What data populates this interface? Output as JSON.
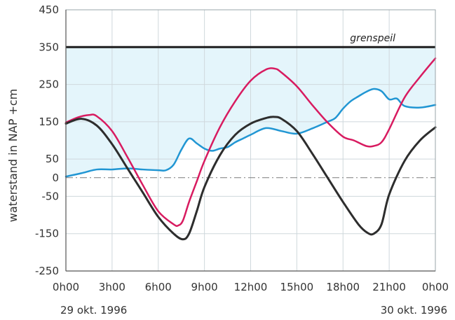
{
  "chart_data": {
    "type": "line",
    "xlabel": "",
    "ylabel": "waterstand in NAP  +cm",
    "x_tick_labels": [
      "0h00",
      "3h00",
      "6h00",
      "9h00",
      "12h00",
      "15h00",
      "18h00",
      "21h00",
      "0h00"
    ],
    "y_tick_labels": [
      "450",
      "350",
      "250",
      "150",
      "50",
      "0",
      "-50",
      "-150",
      "-250"
    ],
    "y_ticks": [
      450,
      350,
      250,
      150,
      50,
      0,
      -50,
      -150,
      -250
    ],
    "xlim": [
      0,
      24
    ],
    "ylim": [
      -250,
      450
    ],
    "date_start": "29 okt. 1996",
    "date_end": "30 okt. 1996",
    "grid": true,
    "annotation": {
      "text": "grenspeil",
      "value": 350
    },
    "colors": {
      "black": "#2d2d2d",
      "magenta": "#d81b60",
      "blue": "#2196d3",
      "fill": "#e4f5fb",
      "grid": "#cfd8dc"
    },
    "series": [
      {
        "color": "black",
        "x": [
          0,
          1,
          2,
          3,
          4,
          5,
          6,
          7,
          7.6,
          8,
          8.5,
          9,
          10,
          11,
          12,
          13,
          13.5,
          14,
          15,
          16,
          17,
          18,
          19,
          19.6,
          20,
          20.5,
          21,
          22,
          23,
          24
        ],
        "y": [
          145,
          158,
          140,
          90,
          25,
          -40,
          -105,
          -150,
          -165,
          -150,
          -90,
          -25,
          60,
          115,
          145,
          160,
          163,
          158,
          125,
          65,
          0,
          -65,
          -125,
          -148,
          -150,
          -125,
          -45,
          45,
          100,
          135
        ]
      },
      {
        "color": "magenta",
        "x": [
          0,
          0.8,
          1.5,
          2,
          3,
          4,
          5,
          6,
          7,
          7.3,
          7.6,
          8,
          8.5,
          9,
          10,
          11,
          12,
          13,
          13.6,
          14,
          15,
          16,
          17,
          18,
          18.7,
          19.5,
          20,
          20.5,
          21,
          22,
          23,
          24
        ],
        "y": [
          148,
          162,
          168,
          165,
          125,
          55,
          -20,
          -90,
          -125,
          -128,
          -115,
          -65,
          -10,
          45,
          135,
          205,
          260,
          290,
          292,
          282,
          245,
          195,
          148,
          110,
          100,
          85,
          85,
          95,
          130,
          215,
          270,
          320
        ]
      },
      {
        "color": "blue",
        "x": [
          0,
          1,
          2,
          3,
          4,
          5,
          6,
          6.5,
          7,
          7.5,
          8,
          8.5,
          9,
          9.5,
          10,
          10.5,
          11,
          11.5,
          12,
          13,
          14,
          15,
          16,
          17,
          17.5,
          18,
          18.5,
          19,
          19.5,
          20,
          20.5,
          21,
          21.5,
          22,
          23,
          24
        ],
        "y": [
          3,
          12,
          22,
          22,
          25,
          22,
          20,
          20,
          35,
          75,
          105,
          92,
          78,
          72,
          78,
          82,
          95,
          105,
          115,
          133,
          125,
          118,
          132,
          150,
          160,
          185,
          205,
          218,
          230,
          238,
          232,
          210,
          212,
          192,
          188,
          195
        ]
      }
    ]
  }
}
